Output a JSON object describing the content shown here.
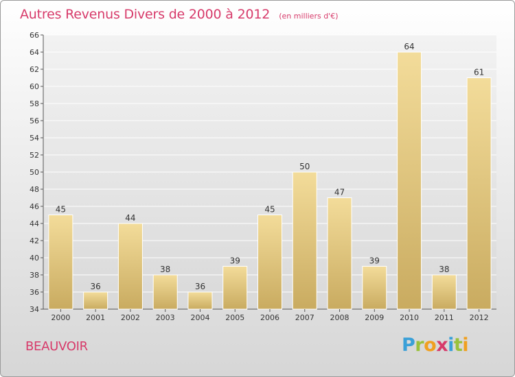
{
  "title": "Autres Revenus Divers de 2000 à 2012",
  "subtitle": "(en milliers d'€)",
  "place": "BEAUVOIR",
  "logo": {
    "letters": [
      {
        "ch": "P",
        "color": "#3aa0d8"
      },
      {
        "ch": "r",
        "color": "#9ac13c"
      },
      {
        "ch": "o",
        "color": "#f0a020"
      },
      {
        "ch": "x",
        "color": "#d73a6a"
      },
      {
        "ch": "i",
        "color": "#3aa0d8"
      },
      {
        "ch": "t",
        "color": "#9ac13c"
      },
      {
        "ch": "i",
        "color": "#f0a020"
      }
    ]
  },
  "colors": {
    "title": "#d73a6a",
    "bar_light": "#f3dc9a",
    "bar_dark": "#c9ab60",
    "grid": "#ffffff",
    "text": "#333333"
  },
  "chart_data": {
    "type": "bar",
    "categories": [
      "2000",
      "2001",
      "2002",
      "2003",
      "2004",
      "2005",
      "2006",
      "2007",
      "2008",
      "2009",
      "2010",
      "2011",
      "2012"
    ],
    "values": [
      45,
      36,
      44,
      38,
      36,
      39,
      45,
      50,
      47,
      39,
      64,
      38,
      61
    ],
    "ylim": [
      34,
      66
    ],
    "ytick_step": 2,
    "grid": true,
    "data_labels": true
  }
}
